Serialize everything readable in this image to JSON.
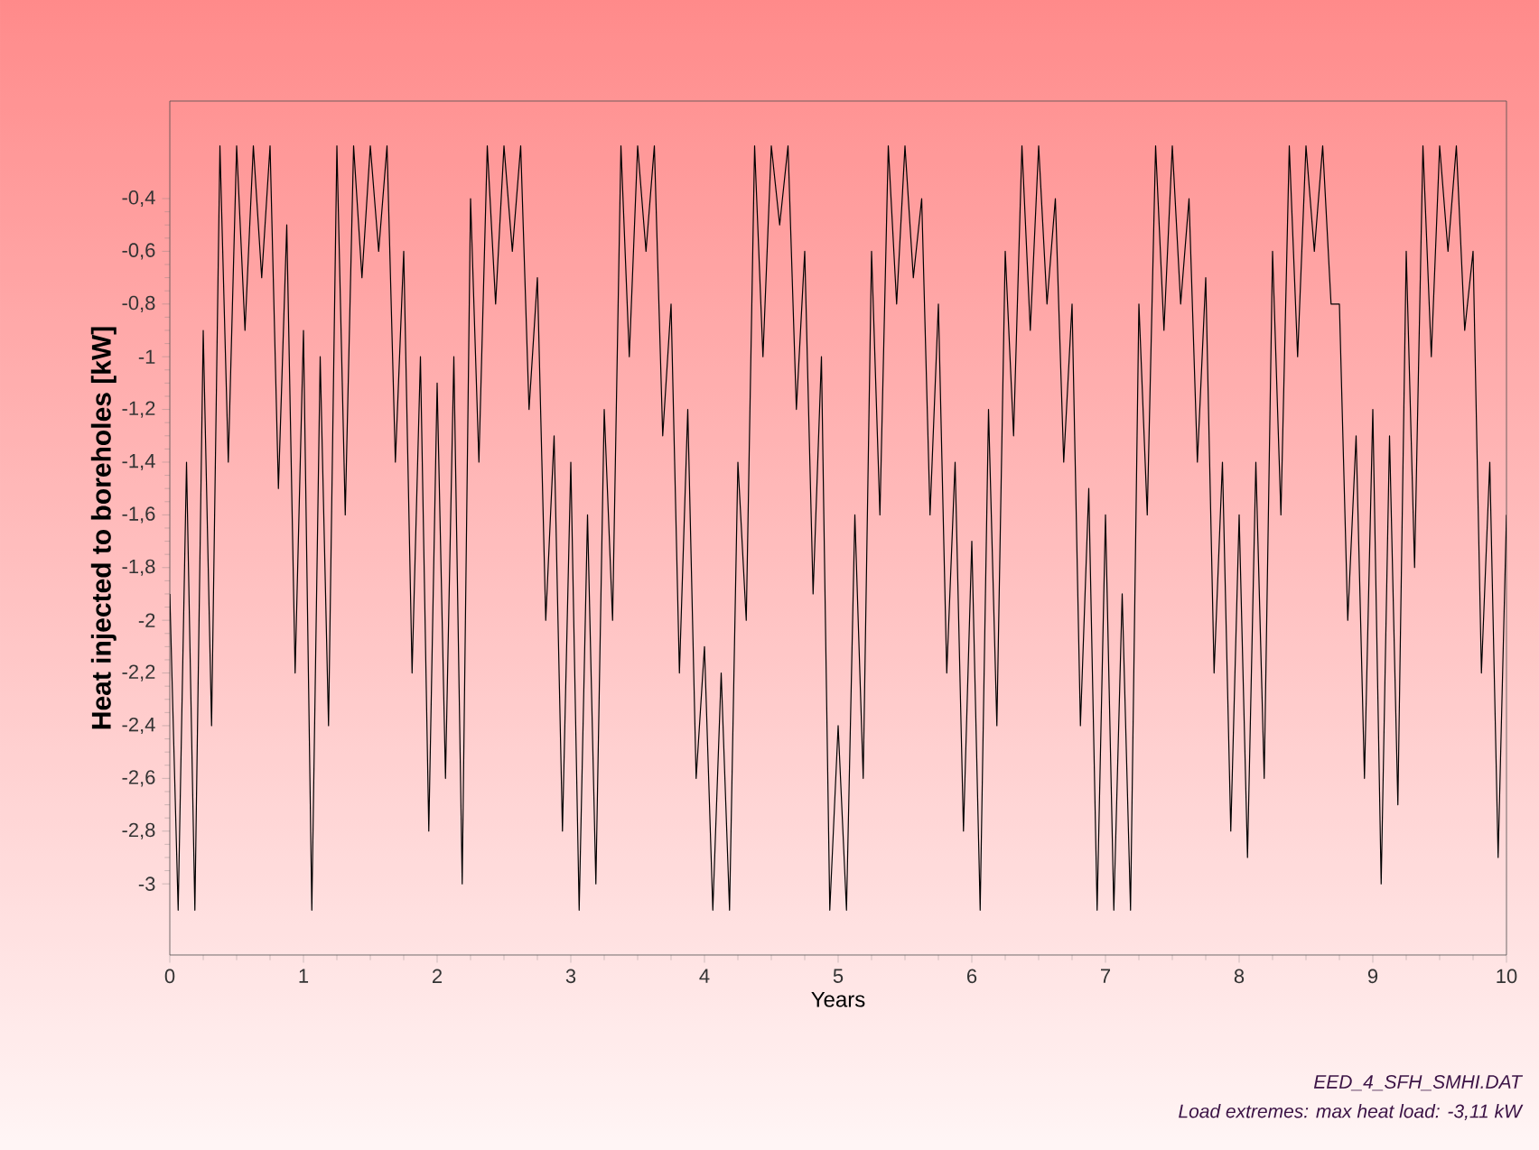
{
  "chart_data": {
    "type": "line",
    "xlabel": "Years",
    "ylabel": "Heat injected to boreholes [kW]",
    "annotations": [
      "EED_4_SFH_SMHI.DAT",
      "Load extremes: max heat load: -3,11 kW"
    ],
    "xlim": [
      0,
      10
    ],
    "ylim": [
      -3.27,
      -0.03
    ],
    "xticks": [
      0,
      1,
      2,
      3,
      4,
      5,
      6,
      7,
      8,
      9,
      10
    ],
    "yticks": [
      {
        "value": -0.4,
        "label": "-0,4"
      },
      {
        "value": -0.6,
        "label": "-0,6"
      },
      {
        "value": -0.8,
        "label": "-0,8"
      },
      -1,
      {
        "value": -1.2,
        "label": "-1,2"
      },
      {
        "value": -1.4,
        "label": "-1,4"
      },
      {
        "value": -1.6,
        "label": "-1,6"
      },
      {
        "value": -1.8,
        "label": "-1,8"
      },
      -2,
      {
        "value": -2.2,
        "label": "-2,2"
      },
      {
        "value": -2.4,
        "label": "-2,4"
      },
      {
        "value": -2.6,
        "label": "-2,6"
      },
      {
        "value": -2.8,
        "label": "-2,8"
      },
      -3
    ],
    "marker": "none",
    "line_style": "solid",
    "series": [
      {
        "color": "#000000",
        "x": [
          0,
          0.0625,
          0.125,
          0.1875,
          0.25,
          0.3125,
          0.375,
          0.4375,
          0.5,
          0.5625,
          0.625,
          0.6875,
          0.75,
          0.8125,
          0.875,
          0.9375,
          1,
          1.0625,
          1.125,
          1.1875,
          1.25,
          1.3125,
          1.375,
          1.4375,
          1.5,
          1.5625,
          1.625,
          1.6875,
          1.75,
          1.8125,
          1.875,
          1.9375,
          2,
          2.0625,
          2.125,
          2.1875,
          2.25,
          2.3125,
          2.375,
          2.4375,
          2.5,
          2.5625,
          2.625,
          2.6875,
          2.75,
          2.8125,
          2.875,
          2.9375,
          3,
          3.0625,
          3.125,
          3.1875,
          3.25,
          3.3125,
          3.375,
          3.4375,
          3.5,
          3.5625,
          3.625,
          3.6875,
          3.75,
          3.8125,
          3.875,
          3.9375,
          4,
          4.0625,
          4.125,
          4.1875,
          4.25,
          4.3125,
          4.375,
          4.4375,
          4.5,
          4.5625,
          4.625,
          4.6875,
          4.75,
          4.8125,
          4.875,
          4.9375,
          5,
          5.0625,
          5.125,
          5.1875,
          5.25,
          5.3125,
          5.375,
          5.4375,
          5.5,
          5.5625,
          5.625,
          5.6875,
          5.75,
          5.8125,
          5.875,
          5.9375,
          6,
          6.0625,
          6.125,
          6.1875,
          6.25,
          6.3125,
          6.375,
          6.4375,
          6.5,
          6.5625,
          6.625,
          6.6875,
          6.75,
          6.8125,
          6.875,
          6.9375,
          7,
          7.0625,
          7.125,
          7.1875,
          7.25,
          7.3125,
          7.375,
          7.4375,
          7.5,
          7.5625,
          7.625,
          7.6875,
          7.75,
          7.8125,
          7.875,
          7.9375,
          8,
          8.0625,
          8.125,
          8.1875,
          8.25,
          8.3125,
          8.375,
          8.4375,
          8.5,
          8.5625,
          8.625,
          8.6875,
          8.75,
          8.8125,
          8.875,
          8.9375,
          9,
          9.0625,
          9.125,
          9.1875,
          9.25,
          9.3125,
          9.375,
          9.4375,
          9.5,
          9.5625,
          9.625,
          9.6875,
          9.75,
          9.8125,
          9.875,
          9.9375,
          10
        ],
        "values": [
          -1.9,
          -3.1,
          -1.4,
          -3.1,
          -0.9,
          -2.4,
          -0.2,
          -1.4,
          -0.2,
          -0.9,
          -0.2,
          -0.7,
          -0.2,
          -1.5,
          -0.5,
          -2.2,
          -0.9,
          -3.1,
          -1.0,
          -2.4,
          -0.2,
          -1.6,
          -0.2,
          -0.7,
          -0.2,
          -0.6,
          -0.2,
          -1.4,
          -0.6,
          -2.2,
          -1.0,
          -2.8,
          -1.1,
          -2.6,
          -1.0,
          -3.0,
          -0.4,
          -1.4,
          -0.2,
          -0.8,
          -0.2,
          -0.6,
          -0.2,
          -1.2,
          -0.7,
          -2.0,
          -1.3,
          -2.8,
          -1.4,
          -3.1,
          -1.6,
          -3.0,
          -1.2,
          -2.0,
          -0.2,
          -1.0,
          -0.2,
          -0.6,
          -0.2,
          -1.3,
          -0.8,
          -2.2,
          -1.2,
          -2.6,
          -2.1,
          -3.1,
          -2.2,
          -3.1,
          -1.4,
          -2.0,
          -0.2,
          -1.0,
          -0.2,
          -0.5,
          -0.2,
          -1.2,
          -0.6,
          -1.9,
          -1.0,
          -3.1,
          -2.4,
          -3.1,
          -1.6,
          -2.6,
          -0.6,
          -1.6,
          -0.2,
          -0.8,
          -0.2,
          -0.7,
          -0.4,
          -1.6,
          -0.8,
          -2.2,
          -1.4,
          -2.8,
          -1.7,
          -3.1,
          -1.2,
          -2.4,
          -0.6,
          -1.3,
          -0.2,
          -0.9,
          -0.2,
          -0.8,
          -0.4,
          -1.4,
          -0.8,
          -2.4,
          -1.5,
          -3.1,
          -1.6,
          -3.1,
          -1.9,
          -3.1,
          -0.8,
          -1.6,
          -0.2,
          -0.9,
          -0.2,
          -0.8,
          -0.4,
          -1.4,
          -0.7,
          -2.2,
          -1.4,
          -2.8,
          -1.6,
          -2.9,
          -1.4,
          -2.6,
          -0.6,
          -1.6,
          -0.2,
          -1.0,
          -0.2,
          -0.6,
          -0.2,
          -0.8,
          -0.8,
          -2.0,
          -1.3,
          -2.6,
          -1.2,
          -3.0,
          -1.3,
          -2.7,
          -0.6,
          -1.8,
          -0.2,
          -1.0,
          -0.2,
          -0.6,
          -0.2,
          -0.9,
          -0.6,
          -2.2,
          -1.4,
          -2.9,
          -1.6
        ]
      }
    ]
  }
}
